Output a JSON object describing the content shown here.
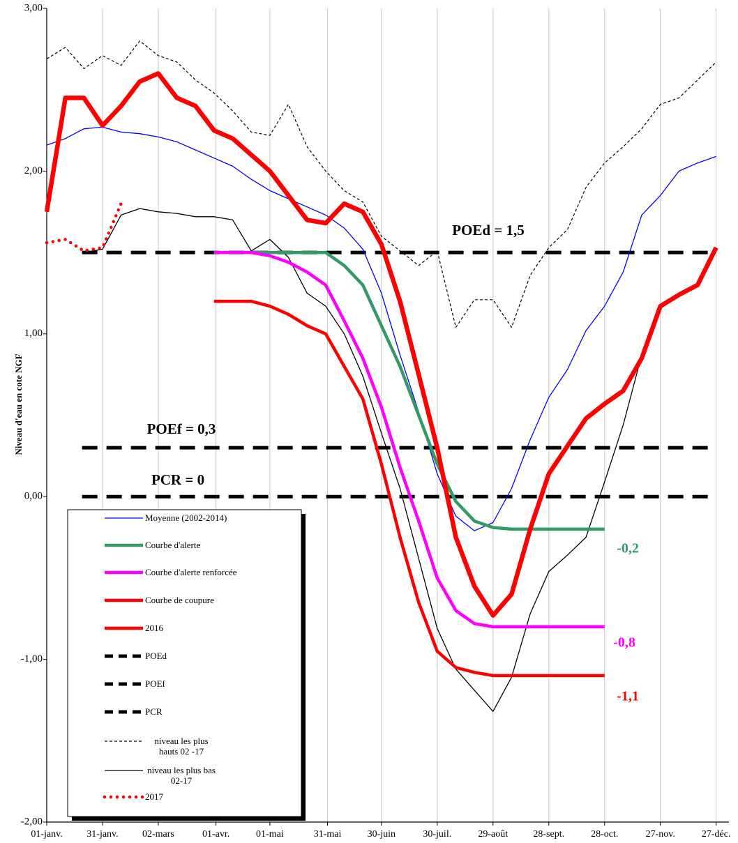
{
  "chart_data": {
    "type": "line",
    "y_label": "Niveau d'eau en cote NGF",
    "x": [
      0,
      10,
      20,
      30,
      40,
      50,
      60,
      70,
      80,
      90,
      100,
      110,
      120,
      130,
      140,
      150,
      160,
      170,
      180,
      190,
      200,
      210,
      220,
      230,
      240,
      250,
      260,
      270,
      280,
      290,
      300,
      310,
      320,
      330,
      340,
      350,
      360
    ],
    "xlim": [
      0,
      365
    ],
    "xticks": [
      {
        "value": 0,
        "label": "01-janv."
      },
      {
        "value": 30,
        "label": "31-janv."
      },
      {
        "value": 60,
        "label": "02-mars"
      },
      {
        "value": 91,
        "label": "01-avr."
      },
      {
        "value": 120,
        "label": "01-mai"
      },
      {
        "value": 151,
        "label": "31-mai"
      },
      {
        "value": 180,
        "label": "30-juin"
      },
      {
        "value": 210,
        "label": "30-juil."
      },
      {
        "value": 240,
        "label": "29-août"
      },
      {
        "value": 270,
        "label": "28-sept."
      },
      {
        "value": 300,
        "label": "28-oct."
      },
      {
        "value": 330,
        "label": "27-nov."
      },
      {
        "value": 360,
        "label": "27-déc."
      }
    ],
    "ylim": [
      -2,
      3
    ],
    "yticks": [
      {
        "value": -2,
        "label": "-2,00"
      },
      {
        "value": -1,
        "label": "-1,00"
      },
      {
        "value": 0,
        "label": "0,00"
      },
      {
        "value": 1,
        "label": "1,00"
      },
      {
        "value": 2,
        "label": "2,00"
      },
      {
        "value": 3,
        "label": "3,00"
      }
    ],
    "grid": true,
    "series": [
      {
        "name": "Moyenne (2002-2014)",
        "color": "#0000ff",
        "width": 1.3,
        "dash": "solid",
        "values": [
          2.16,
          2.2,
          2.26,
          2.27,
          2.24,
          2.23,
          2.21,
          2.18,
          2.13,
          2.08,
          2.03,
          1.95,
          1.88,
          1.83,
          1.78,
          1.73,
          1.65,
          1.52,
          1.25,
          0.87,
          0.52,
          0.14,
          -0.12,
          -0.21,
          -0.16,
          0.05,
          0.35,
          0.61,
          0.78,
          1.02,
          1.17,
          1.38,
          1.73,
          1.85,
          2.0,
          2.05,
          2.09
        ]
      },
      {
        "name": "Courbe d'alerte",
        "color": "#339966",
        "width": 4.5,
        "dash": "solid",
        "values": [
          null,
          null,
          null,
          null,
          null,
          null,
          null,
          null,
          null,
          1.5,
          1.5,
          1.5,
          1.5,
          1.5,
          1.5,
          1.5,
          1.42,
          1.3,
          1.05,
          0.8,
          0.5,
          0.2,
          -0.03,
          -0.15,
          -0.19,
          -0.2,
          -0.2,
          -0.2,
          -0.2,
          -0.2,
          -0.2,
          null,
          null,
          null,
          null,
          null,
          null
        ]
      },
      {
        "name": "Courbe d'alerte renforcée",
        "color": "#ff00ff",
        "width": 4.5,
        "dash": "solid",
        "values": [
          null,
          null,
          null,
          null,
          null,
          null,
          null,
          null,
          null,
          1.5,
          1.5,
          1.5,
          1.48,
          1.44,
          1.38,
          1.3,
          1.08,
          0.85,
          0.55,
          0.18,
          -0.15,
          -0.5,
          -0.7,
          -0.78,
          -0.8,
          -0.8,
          -0.8,
          -0.8,
          -0.8,
          -0.8,
          -0.8,
          null,
          null,
          null,
          null,
          null,
          null
        ]
      },
      {
        "name": "Courbe de coupure",
        "color": "#ff0000",
        "width": 4.5,
        "dash": "solid",
        "values": [
          null,
          null,
          null,
          null,
          null,
          null,
          null,
          null,
          null,
          1.2,
          1.2,
          1.2,
          1.17,
          1.12,
          1.05,
          1.0,
          0.8,
          0.6,
          0.2,
          -0.25,
          -0.65,
          -0.95,
          -1.05,
          -1.08,
          -1.1,
          -1.1,
          -1.1,
          -1.1,
          -1.1,
          -1.1,
          -1.1,
          null,
          null,
          null,
          null,
          null,
          null
        ]
      },
      {
        "name": "2016",
        "color": "#ff0000",
        "width": 6.5,
        "dash": "solid",
        "values": [
          1.75,
          2.45,
          2.45,
          2.28,
          2.4,
          2.55,
          2.6,
          2.45,
          2.4,
          2.25,
          2.2,
          2.1,
          2.0,
          1.85,
          1.7,
          1.68,
          1.8,
          1.75,
          1.55,
          1.2,
          0.75,
          0.3,
          -0.25,
          -0.55,
          -0.73,
          -0.6,
          -0.2,
          0.14,
          0.31,
          0.48,
          0.57,
          0.65,
          0.85,
          1.17,
          1.24,
          1.3,
          1.53
        ]
      },
      {
        "name": "niveau les plus hauts 02 -17",
        "color": "#000000",
        "width": 1.2,
        "dash": "dashed",
        "values": [
          2.69,
          2.76,
          2.63,
          2.71,
          2.65,
          2.8,
          2.71,
          2.67,
          2.56,
          2.48,
          2.37,
          2.24,
          2.22,
          2.41,
          2.15,
          2.0,
          1.88,
          1.81,
          1.6,
          1.51,
          1.42,
          1.51,
          1.04,
          1.21,
          1.21,
          1.04,
          1.36,
          1.53,
          1.64,
          1.9,
          2.05,
          2.15,
          2.26,
          2.41,
          2.45,
          2.56,
          2.67
        ]
      },
      {
        "name": "niveau les plus bas 02-17",
        "color": "#000000",
        "width": 1.3,
        "dash": "solid",
        "values": [
          null,
          null,
          1.5,
          1.52,
          1.73,
          1.77,
          1.75,
          1.74,
          1.72,
          1.72,
          1.7,
          1.51,
          1.58,
          1.47,
          1.25,
          1.17,
          1.0,
          0.74,
          0.39,
          0.05,
          -0.38,
          -0.81,
          -1.06,
          -1.19,
          -1.32,
          -1.11,
          -0.72,
          -0.46,
          -0.36,
          -0.25,
          0.09,
          0.44,
          0.87,
          1.17,
          1.24,
          1.3,
          1.53
        ]
      },
      {
        "name": "2017",
        "color": "#ff0000",
        "width": 4.5,
        "dash": "dotted",
        "values": [
          1.56,
          1.58,
          1.51,
          1.53,
          1.8,
          null,
          null,
          null,
          null,
          null,
          null,
          null,
          null,
          null,
          null,
          null,
          null,
          null,
          null,
          null,
          null,
          null,
          null,
          null,
          null,
          null,
          null,
          null,
          null,
          null,
          null,
          null,
          null,
          null,
          null,
          null,
          null
        ]
      }
    ],
    "hlines": [
      {
        "name": "POEd",
        "value": 1.5,
        "label": "POEd = 1,5",
        "color": "#000000"
      },
      {
        "name": "POEf",
        "value": 0.3,
        "label": "POEf = 0,3",
        "color": "#000000"
      },
      {
        "name": "PCR",
        "value": 0,
        "label": "PCR = 0",
        "color": "#000000"
      }
    ],
    "annotations": [
      {
        "text": "-0,2",
        "color": "#339966"
      },
      {
        "text": "-0,8",
        "color": "#ff00ff"
      },
      {
        "text": "-1,1",
        "color": "#ff0000"
      }
    ]
  }
}
